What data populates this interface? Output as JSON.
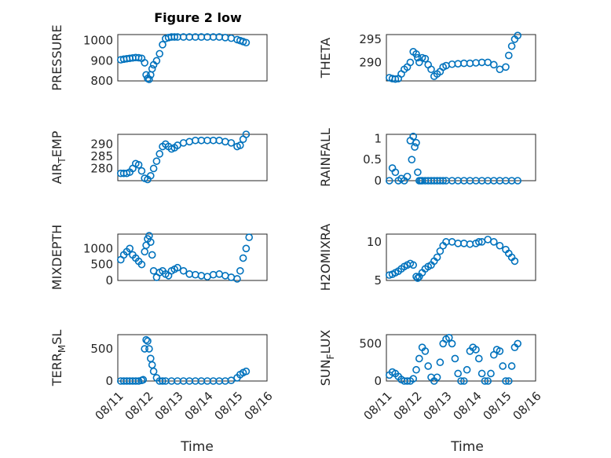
{
  "figure": {
    "title": "Figure 2 low",
    "accent_color": "#0072BD",
    "xlabel": "Time"
  },
  "chart_data": [
    {
      "type": "scatter",
      "title": "Figure 2 low",
      "ylabel": "PRESSURE",
      "ylabel_sub": "",
      "ylabel_tail": "",
      "xlim": [
        11.0,
        16.0
      ],
      "ylim": [
        800,
        1030
      ],
      "yticks": [
        800,
        900,
        1000
      ],
      "xticks": [
        "08/11",
        "08/12",
        "08/13",
        "08/14",
        "08/15",
        "08/16"
      ],
      "xticklabels_visible": false,
      "x": [
        11.1,
        11.2,
        11.3,
        11.4,
        11.5,
        11.6,
        11.7,
        11.8,
        11.9,
        11.95,
        12.0,
        12.05,
        12.1,
        12.15,
        12.2,
        12.3,
        12.4,
        12.5,
        12.6,
        12.7,
        12.8,
        12.9,
        13.0,
        13.2,
        13.4,
        13.6,
        13.8,
        14.0,
        14.2,
        14.4,
        14.6,
        14.8,
        15.0,
        15.1,
        15.2,
        15.3
      ],
      "y": [
        905,
        908,
        910,
        912,
        914,
        916,
        915,
        912,
        890,
        830,
        812,
        808,
        830,
        860,
        880,
        900,
        935,
        980,
        1010,
        1015,
        1018,
        1018,
        1018,
        1018,
        1018,
        1018,
        1018,
        1018,
        1018,
        1018,
        1015,
        1012,
        1005,
        1000,
        995,
        990
      ]
    },
    {
      "type": "scatter",
      "ylabel": "THETA",
      "ylabel_sub": "",
      "ylabel_tail": "",
      "xlim": [
        11.0,
        16.0
      ],
      "ylim": [
        286,
        296
      ],
      "yticks": [
        290,
        295
      ],
      "xticks": [
        "08/11",
        "08/12",
        "08/13",
        "08/14",
        "08/15",
        "08/16"
      ],
      "xticklabels_visible": false,
      "x": [
        11.1,
        11.2,
        11.3,
        11.4,
        11.5,
        11.6,
        11.7,
        11.8,
        11.9,
        12.0,
        12.05,
        12.1,
        12.2,
        12.3,
        12.4,
        12.5,
        12.6,
        12.7,
        12.8,
        12.9,
        13.0,
        13.2,
        13.4,
        13.6,
        13.8,
        14.0,
        14.2,
        14.4,
        14.6,
        14.8,
        15.0,
        15.1,
        15.2,
        15.3,
        15.4
      ],
      "y": [
        286.7,
        286.5,
        286.4,
        286.5,
        287.5,
        288.5,
        289.0,
        290.0,
        292.3,
        291.8,
        291.0,
        290.0,
        291.0,
        290.8,
        289.5,
        288.5,
        287.0,
        287.5,
        288.0,
        289.0,
        289.3,
        289.6,
        289.7,
        289.8,
        289.8,
        289.9,
        290.0,
        290.0,
        289.5,
        288.5,
        289.0,
        291.5,
        293.5,
        295.0,
        295.8
      ]
    },
    {
      "type": "scatter",
      "ylabel": "AIR",
      "ylabel_sub": "T",
      "ylabel_tail": "EMP",
      "xlim": [
        11.0,
        16.0
      ],
      "ylim": [
        275,
        294
      ],
      "yticks": [
        280,
        285,
        290
      ],
      "xticks": [
        "08/11",
        "08/12",
        "08/13",
        "08/14",
        "08/15",
        "08/16"
      ],
      "xticklabels_visible": false,
      "x": [
        11.1,
        11.2,
        11.3,
        11.4,
        11.5,
        11.6,
        11.7,
        11.8,
        11.9,
        12.0,
        12.1,
        12.2,
        12.3,
        12.4,
        12.5,
        12.6,
        12.7,
        12.8,
        12.9,
        13.0,
        13.2,
        13.4,
        13.6,
        13.8,
        14.0,
        14.2,
        14.4,
        14.6,
        14.8,
        15.0,
        15.1,
        15.2,
        15.3
      ],
      "y": [
        278,
        278,
        278,
        278.5,
        280,
        282,
        281.5,
        279,
        276,
        275.5,
        277,
        280,
        283,
        286,
        289,
        290,
        289,
        288,
        288.5,
        289.5,
        290.5,
        291,
        291.5,
        291.5,
        291.5,
        291.5,
        291.5,
        291,
        290.5,
        289,
        289.5,
        292,
        294
      ]
    },
    {
      "type": "scatter",
      "ylabel": "RAINFALL",
      "ylabel_sub": "",
      "ylabel_tail": "",
      "xlim": [
        11.0,
        16.0
      ],
      "ylim": [
        0,
        1.1
      ],
      "yticks": [
        0,
        0.5,
        1
      ],
      "xticks": [
        "08/11",
        "08/12",
        "08/13",
        "08/14",
        "08/15",
        "08/16"
      ],
      "xticklabels_visible": false,
      "x": [
        11.1,
        11.2,
        11.3,
        11.4,
        11.5,
        11.6,
        11.7,
        11.8,
        11.85,
        11.9,
        11.95,
        12.0,
        12.05,
        12.1,
        12.15,
        12.2,
        12.3,
        12.4,
        12.5,
        12.6,
        12.7,
        12.8,
        12.9,
        13.0,
        13.2,
        13.4,
        13.6,
        13.8,
        14.0,
        14.2,
        14.4,
        14.6,
        14.8,
        15.0,
        15.2,
        15.4
      ],
      "y": [
        0,
        0.3,
        0.2,
        0,
        0.05,
        0,
        0.1,
        0.95,
        0.5,
        1.05,
        0.8,
        0.9,
        0.2,
        0,
        0,
        0,
        0,
        0,
        0,
        0,
        0,
        0,
        0,
        0,
        0,
        0,
        0,
        0,
        0,
        0,
        0,
        0,
        0,
        0,
        0,
        0
      ]
    },
    {
      "type": "scatter",
      "ylabel": "MIXDEPTH",
      "ylabel_sub": "",
      "ylabel_tail": "",
      "xlim": [
        11.0,
        16.0
      ],
      "ylim": [
        0,
        1450
      ],
      "yticks": [
        0,
        500,
        1000
      ],
      "xticks": [
        "08/11",
        "08/12",
        "08/13",
        "08/14",
        "08/15",
        "08/16"
      ],
      "xticklabels_visible": false,
      "x": [
        11.1,
        11.2,
        11.3,
        11.4,
        11.5,
        11.6,
        11.7,
        11.8,
        11.9,
        11.95,
        12.0,
        12.05,
        12.1,
        12.15,
        12.2,
        12.3,
        12.4,
        12.5,
        12.6,
        12.7,
        12.8,
        12.9,
        13.0,
        13.2,
        13.4,
        13.6,
        13.8,
        14.0,
        14.2,
        14.4,
        14.6,
        14.8,
        15.0,
        15.1,
        15.2,
        15.3,
        15.4
      ],
      "y": [
        650,
        800,
        900,
        1000,
        800,
        700,
        600,
        500,
        900,
        1100,
        1300,
        1400,
        1200,
        800,
        300,
        100,
        250,
        300,
        200,
        150,
        300,
        350,
        400,
        300,
        200,
        180,
        150,
        120,
        180,
        200,
        150,
        100,
        50,
        300,
        700,
        1000,
        1350
      ]
    },
    {
      "type": "scatter",
      "ylabel": "H2OMIXRA",
      "ylabel_sub": "",
      "ylabel_tail": "",
      "xlim": [
        11.0,
        16.0
      ],
      "ylim": [
        5,
        11
      ],
      "yticks": [
        5,
        10
      ],
      "xticks": [
        "08/11",
        "08/12",
        "08/13",
        "08/14",
        "08/15",
        "08/16"
      ],
      "xticklabels_visible": false,
      "x": [
        11.1,
        11.2,
        11.3,
        11.4,
        11.5,
        11.6,
        11.7,
        11.8,
        11.9,
        12.0,
        12.05,
        12.1,
        12.2,
        12.3,
        12.4,
        12.5,
        12.6,
        12.7,
        12.8,
        12.9,
        13.0,
        13.2,
        13.4,
        13.6,
        13.8,
        14.0,
        14.1,
        14.2,
        14.4,
        14.6,
        14.8,
        15.0,
        15.1,
        15.2,
        15.3
      ],
      "y": [
        5.7,
        5.8,
        6.0,
        6.2,
        6.5,
        6.8,
        7.0,
        7.2,
        7.0,
        5.5,
        5.3,
        5.5,
        6.0,
        6.5,
        6.8,
        7.0,
        7.5,
        8.0,
        8.8,
        9.5,
        10.0,
        10.0,
        9.8,
        9.8,
        9.7,
        9.8,
        10.0,
        10.0,
        10.3,
        10.0,
        9.5,
        9.0,
        8.5,
        8.0,
        7.5
      ]
    },
    {
      "type": "scatter",
      "ylabel": "TERR",
      "ylabel_sub": "M",
      "ylabel_tail": "SL",
      "xlim": [
        11.0,
        16.0
      ],
      "ylim": [
        0,
        720
      ],
      "yticks": [
        0,
        500
      ],
      "xticks": [
        "08/11",
        "08/12",
        "08/13",
        "08/14",
        "08/15",
        "08/16"
      ],
      "xticklabels_visible": true,
      "x": [
        11.1,
        11.2,
        11.3,
        11.4,
        11.5,
        11.6,
        11.7,
        11.8,
        11.85,
        11.9,
        11.95,
        12.0,
        12.05,
        12.1,
        12.15,
        12.2,
        12.3,
        12.4,
        12.5,
        12.6,
        12.8,
        13.0,
        13.2,
        13.4,
        13.6,
        13.8,
        14.0,
        14.2,
        14.4,
        14.6,
        14.8,
        15.0,
        15.1,
        15.2,
        15.3
      ],
      "y": [
        0,
        0,
        0,
        0,
        0,
        0,
        0,
        10,
        20,
        500,
        640,
        620,
        500,
        350,
        250,
        150,
        50,
        0,
        0,
        0,
        0,
        0,
        0,
        0,
        0,
        0,
        0,
        0,
        0,
        0,
        10,
        50,
        100,
        130,
        150
      ]
    },
    {
      "type": "scatter",
      "ylabel": "SUN",
      "ylabel_sub": "F",
      "ylabel_tail": "LUX",
      "xlim": [
        11.0,
        16.0
      ],
      "ylim": [
        0,
        620
      ],
      "yticks": [
        0,
        500
      ],
      "xticks": [
        "08/11",
        "08/12",
        "08/13",
        "08/14",
        "08/15",
        "08/16"
      ],
      "xticklabels_visible": true,
      "x": [
        11.1,
        11.2,
        11.3,
        11.4,
        11.5,
        11.6,
        11.7,
        11.8,
        11.9,
        12.0,
        12.1,
        12.2,
        12.3,
        12.4,
        12.5,
        12.6,
        12.7,
        12.8,
        12.9,
        13.0,
        13.1,
        13.2,
        13.3,
        13.4,
        13.5,
        13.6,
        13.7,
        13.8,
        13.9,
        14.0,
        14.1,
        14.2,
        14.3,
        14.4,
        14.5,
        14.6,
        14.7,
        14.8,
        14.9,
        15.0,
        15.1,
        15.2,
        15.3,
        15.4
      ],
      "y": [
        80,
        120,
        100,
        60,
        20,
        0,
        0,
        0,
        30,
        150,
        300,
        450,
        400,
        200,
        50,
        0,
        50,
        250,
        500,
        560,
        580,
        500,
        300,
        100,
        0,
        0,
        150,
        400,
        450,
        420,
        300,
        100,
        0,
        0,
        100,
        350,
        420,
        400,
        200,
        0,
        0,
        200,
        450,
        500
      ]
    }
  ]
}
